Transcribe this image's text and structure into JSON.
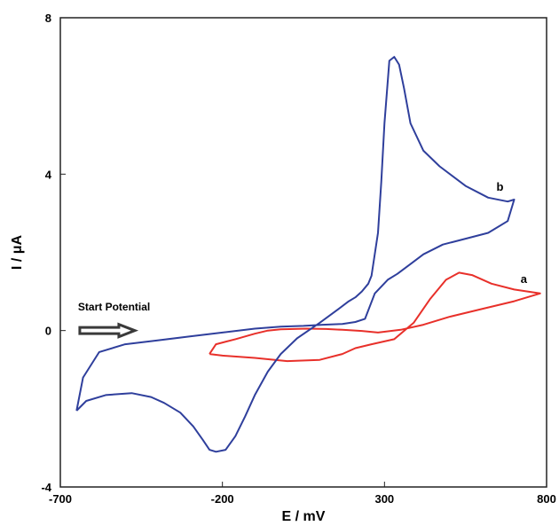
{
  "chart_data": {
    "type": "line",
    "xlabel": "E / mV",
    "ylabel": "I / μA",
    "xlim": [
      -700,
      800
    ],
    "ylim": [
      -4,
      8
    ],
    "x_ticks": [
      -700,
      -200,
      300,
      800
    ],
    "y_ticks": [
      -4,
      0,
      4,
      8
    ],
    "grid": false,
    "legend": "none",
    "annotation": {
      "text": "Start Potential",
      "arrow_direction": "right",
      "x": -640,
      "y": 0.6
    },
    "series": [
      {
        "name": "a",
        "color": "#e8302a",
        "label_position": "right",
        "x": [
          -240,
          -200,
          -100,
          0,
          100,
          170,
          210,
          260,
          330,
          390,
          440,
          490,
          530,
          570,
          630,
          700,
          780,
          700,
          600,
          500,
          420,
          350,
          280,
          230,
          170,
          120,
          60,
          20,
          -20,
          -60,
          -100,
          -160,
          -220,
          -240
        ],
        "y": [
          -0.6,
          -0.64,
          -0.7,
          -0.78,
          -0.75,
          -0.6,
          -0.45,
          -0.35,
          -0.22,
          0.2,
          0.8,
          1.3,
          1.48,
          1.42,
          1.2,
          1.05,
          0.95,
          0.75,
          0.55,
          0.35,
          0.15,
          0.02,
          -0.05,
          -0.01,
          0.02,
          0.04,
          0.05,
          0.04,
          0.03,
          0.0,
          -0.08,
          -0.22,
          -0.35,
          -0.6
        ]
      },
      {
        "name": "b",
        "color": "#2f3f9c",
        "label_position": "top-left",
        "x": [
          -650,
          -620,
          -560,
          -480,
          -420,
          -380,
          -330,
          -290,
          -260,
          -240,
          -220,
          -190,
          -160,
          -130,
          -100,
          -60,
          -20,
          30,
          100,
          150,
          190,
          210,
          230,
          250,
          260,
          280,
          290,
          300,
          315,
          330,
          345,
          360,
          380,
          420,
          470,
          550,
          620,
          680,
          700,
          680,
          620,
          550,
          480,
          420,
          380,
          340,
          310,
          270,
          240,
          210,
          170,
          110,
          50,
          -20,
          -100,
          -200,
          -300,
          -400,
          -500,
          -580,
          -630,
          -650
        ],
        "y": [
          -2.05,
          -1.8,
          -1.65,
          -1.6,
          -1.7,
          -1.85,
          -2.1,
          -2.45,
          -2.8,
          -3.05,
          -3.1,
          -3.05,
          -2.7,
          -2.2,
          -1.65,
          -1.05,
          -0.6,
          -0.2,
          0.2,
          0.5,
          0.75,
          0.85,
          1.0,
          1.2,
          1.4,
          2.5,
          3.8,
          5.3,
          6.9,
          7.0,
          6.8,
          6.2,
          5.3,
          4.6,
          4.2,
          3.7,
          3.4,
          3.3,
          3.35,
          2.8,
          2.5,
          2.35,
          2.2,
          1.95,
          1.7,
          1.45,
          1.3,
          0.95,
          0.3,
          0.22,
          0.17,
          0.15,
          0.12,
          0.1,
          0.05,
          -0.05,
          -0.15,
          -0.25,
          -0.35,
          -0.55,
          -1.2,
          -2.05
        ]
      }
    ]
  }
}
